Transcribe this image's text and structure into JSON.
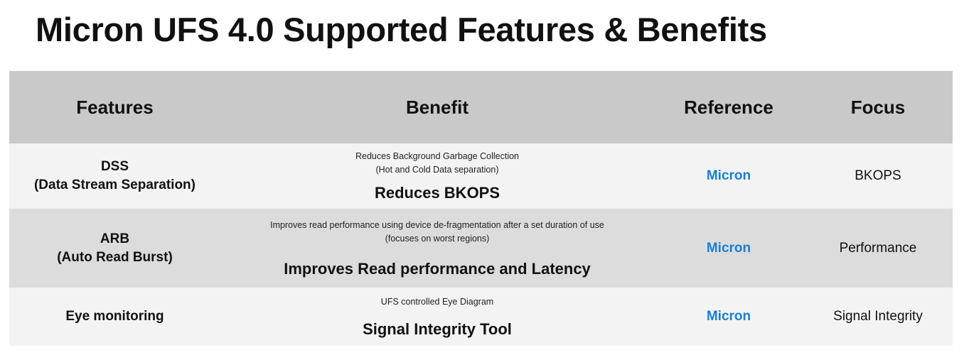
{
  "title": "Micron UFS 4.0 Supported Features & Benefits",
  "headers": [
    "Features",
    "Benefit",
    "Reference",
    "Focus"
  ],
  "rows": [
    {
      "feature": "DSS",
      "feature_sub": "(Data Stream Separation)",
      "benefit_detail1": "Reduces Background Garbage Collection",
      "benefit_detail2": "(Hot and Cold Data separation)",
      "benefit": "Reduces BKOPS",
      "reference": "Micron",
      "focus": "BKOPS"
    },
    {
      "feature": "ARB",
      "feature_sub": "(Auto Read Burst)",
      "benefit_detail1": "Improves read performance using device de-fragmentation after a set duration of use",
      "benefit_detail2": "(focuses on worst regions)",
      "benefit": "Improves Read performance and Latency",
      "reference": "Micron",
      "focus": "Performance"
    },
    {
      "feature": "Eye monitoring",
      "benefit_detail1": "UFS controlled Eye Diagram",
      "benefit": "Signal Integrity Tool",
      "reference": "Micron",
      "focus": "Signal Integrity"
    }
  ],
  "colors": {
    "reference": "#1a7fd0",
    "header_bg": "#c9c9c9",
    "alt_row_bg": "#dcdcdc"
  }
}
